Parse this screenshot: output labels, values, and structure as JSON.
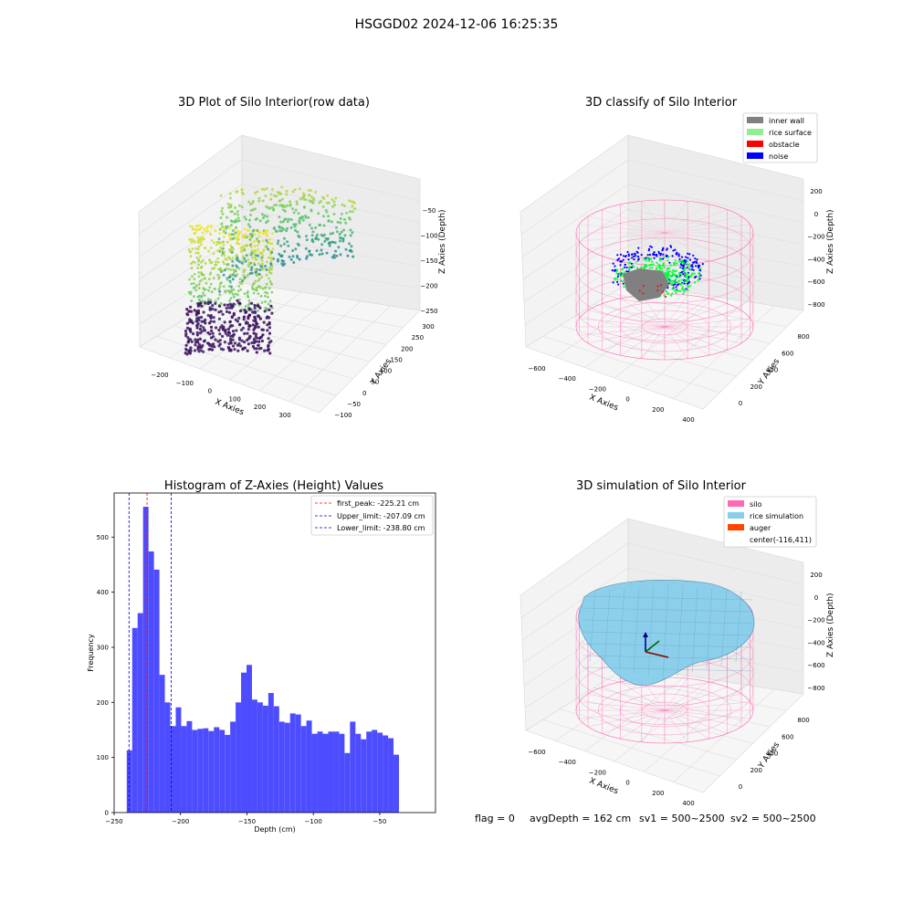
{
  "figure": {
    "suptitle": "HSGGD02 2024-12-06 16:25:35",
    "status_line": {
      "flag": "flag = 0",
      "avg_depth": "avgDepth = 162 cm",
      "sv1": "sv1 = 500~2500",
      "sv2": "sv2 = 500~2500"
    }
  },
  "colors": {
    "histogram_bar": "#4d4dff",
    "first_peak_line": "#ff0000",
    "limit_lines": "#0000cc",
    "silo_wire": "#ff69b4",
    "inner_wall": "#808080",
    "rice_surface": "#90ee90",
    "obstacle": "#ff0000",
    "noise": "#0000ff",
    "rice_simulation": "#87ceeb",
    "auger": "#ff4500"
  },
  "chart_data": [
    {
      "id": "raw-3d",
      "type": "scatter",
      "title": "3D Plot of Silo Interior(row data)",
      "xlabel": "X Axies",
      "ylabel": "Y Axies",
      "zlabel": "Z Axies (Depth)",
      "x_ticks": [
        "−200",
        "−100",
        "0",
        "100",
        "200",
        "300"
      ],
      "y_ticks": [
        "−100",
        "−50",
        "0",
        "50",
        "100",
        "150",
        "200",
        "250",
        "300"
      ],
      "z_ticks": [
        "−50",
        "−100",
        "−150",
        "−200",
        "−250"
      ],
      "colormap": "viridis"
    },
    {
      "id": "classify-3d",
      "type": "scatter",
      "title": "3D classify of Silo Interior",
      "xlabel": "X Axies",
      "ylabel": "Y Axies",
      "zlabel": "Z Axies (Depth)",
      "x_ticks": [
        "−600",
        "−400",
        "−200",
        "0",
        "200",
        "400"
      ],
      "y_ticks": [
        "0",
        "200",
        "400",
        "600",
        "800"
      ],
      "z_ticks": [
        "200",
        "0",
        "−200",
        "−400",
        "−600",
        "−800"
      ],
      "legend": [
        "inner wall",
        "rice surface",
        "obstacle",
        "noise"
      ],
      "legend_position": "top-right"
    },
    {
      "id": "histogram",
      "type": "bar",
      "title": "Histogram of Z-Axies (Height) Values",
      "xlabel": "Depth (cm)",
      "ylabel": "Frequency",
      "xlim": [
        -250,
        -8
      ],
      "ylim": [
        0,
        580
      ],
      "x_ticks": [
        -250,
        -200,
        -150,
        -100,
        -50
      ],
      "y_ticks": [
        0,
        100,
        200,
        300,
        400,
        500
      ],
      "x_tick_labels": [
        "−250",
        "−200",
        "−150",
        "−100",
        "−50"
      ],
      "bin_width": 4.1,
      "bin_start": -240.5,
      "values": [
        113,
        335,
        362,
        555,
        474,
        441,
        250,
        200,
        157,
        191,
        157,
        166,
        150,
        152,
        153,
        148,
        155,
        150,
        141,
        165,
        200,
        254,
        268,
        205,
        200,
        194,
        217,
        193,
        165,
        163,
        180,
        178,
        157,
        167,
        143,
        147,
        143,
        147,
        147,
        143,
        108,
        165,
        143,
        133,
        147,
        150,
        145,
        140,
        135,
        105
      ],
      "vlines": [
        {
          "x": -225.21,
          "label": "first_peak: -225.21 cm",
          "color": "red"
        },
        {
          "x": -207.09,
          "label": "Upper_limit: -207.09 cm",
          "color": "blue"
        },
        {
          "x": -238.8,
          "label": "Lower_limit: -238.80 cm",
          "color": "blue"
        }
      ],
      "legend_position": "top-right"
    },
    {
      "id": "simulation-3d",
      "type": "scatter",
      "title": "3D simulation of Silo Interior",
      "xlabel": "X Axies",
      "ylabel": "Y Axies",
      "zlabel": "Z Axies (Depth)",
      "x_ticks": [
        "−600",
        "−400",
        "−200",
        "0",
        "200",
        "400"
      ],
      "y_ticks": [
        "0",
        "200",
        "400",
        "600",
        "800"
      ],
      "z_ticks": [
        "200",
        "0",
        "−200",
        "−400",
        "−600",
        "−800"
      ],
      "legend": [
        "silo",
        "rice simulation",
        "auger",
        "center(-116,411)"
      ],
      "legend_position": "top-right"
    }
  ]
}
